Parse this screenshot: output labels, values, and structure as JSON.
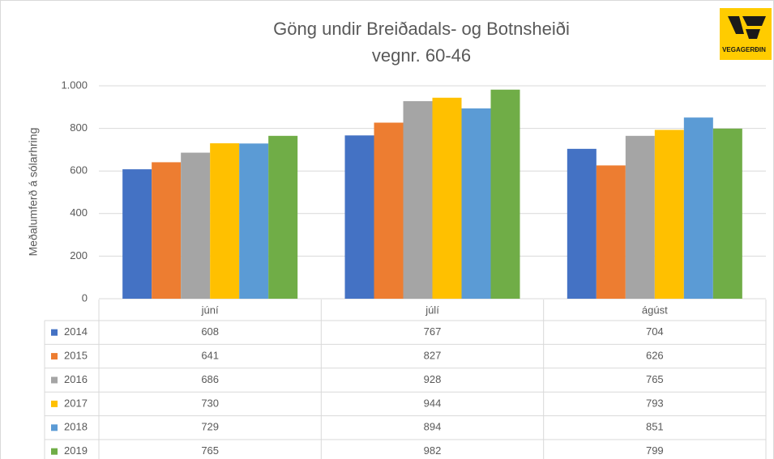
{
  "chart_data": {
    "type": "bar",
    "title": "Göng undir Breiðadals- og Botnsheiði",
    "subtitle": "vegnr. 60-46",
    "y_label": "Meðalumferð á sólarhring",
    "logo_text": "VEGAGERÐIN",
    "categories": [
      "júní",
      "júlí",
      "ágúst"
    ],
    "series": [
      {
        "name": "2014",
        "color": "#4472c4",
        "values": [
          608,
          767,
          704
        ]
      },
      {
        "name": "2015",
        "color": "#ed7d31",
        "values": [
          641,
          827,
          626
        ]
      },
      {
        "name": "2016",
        "color": "#a5a5a5",
        "values": [
          686,
          928,
          765
        ]
      },
      {
        "name": "2017",
        "color": "#ffc000",
        "values": [
          730,
          944,
          793
        ]
      },
      {
        "name": "2018",
        "color": "#5b9bd5",
        "values": [
          729,
          894,
          851
        ]
      },
      {
        "name": "2019",
        "color": "#70ad47",
        "values": [
          765,
          982,
          799
        ]
      }
    ],
    "ylim": [
      0,
      1000
    ],
    "yticks": [
      0,
      200,
      400,
      600,
      800,
      {
        "value": 1000,
        "label": "1.000"
      }
    ],
    "grid": true,
    "data_table": true
  }
}
